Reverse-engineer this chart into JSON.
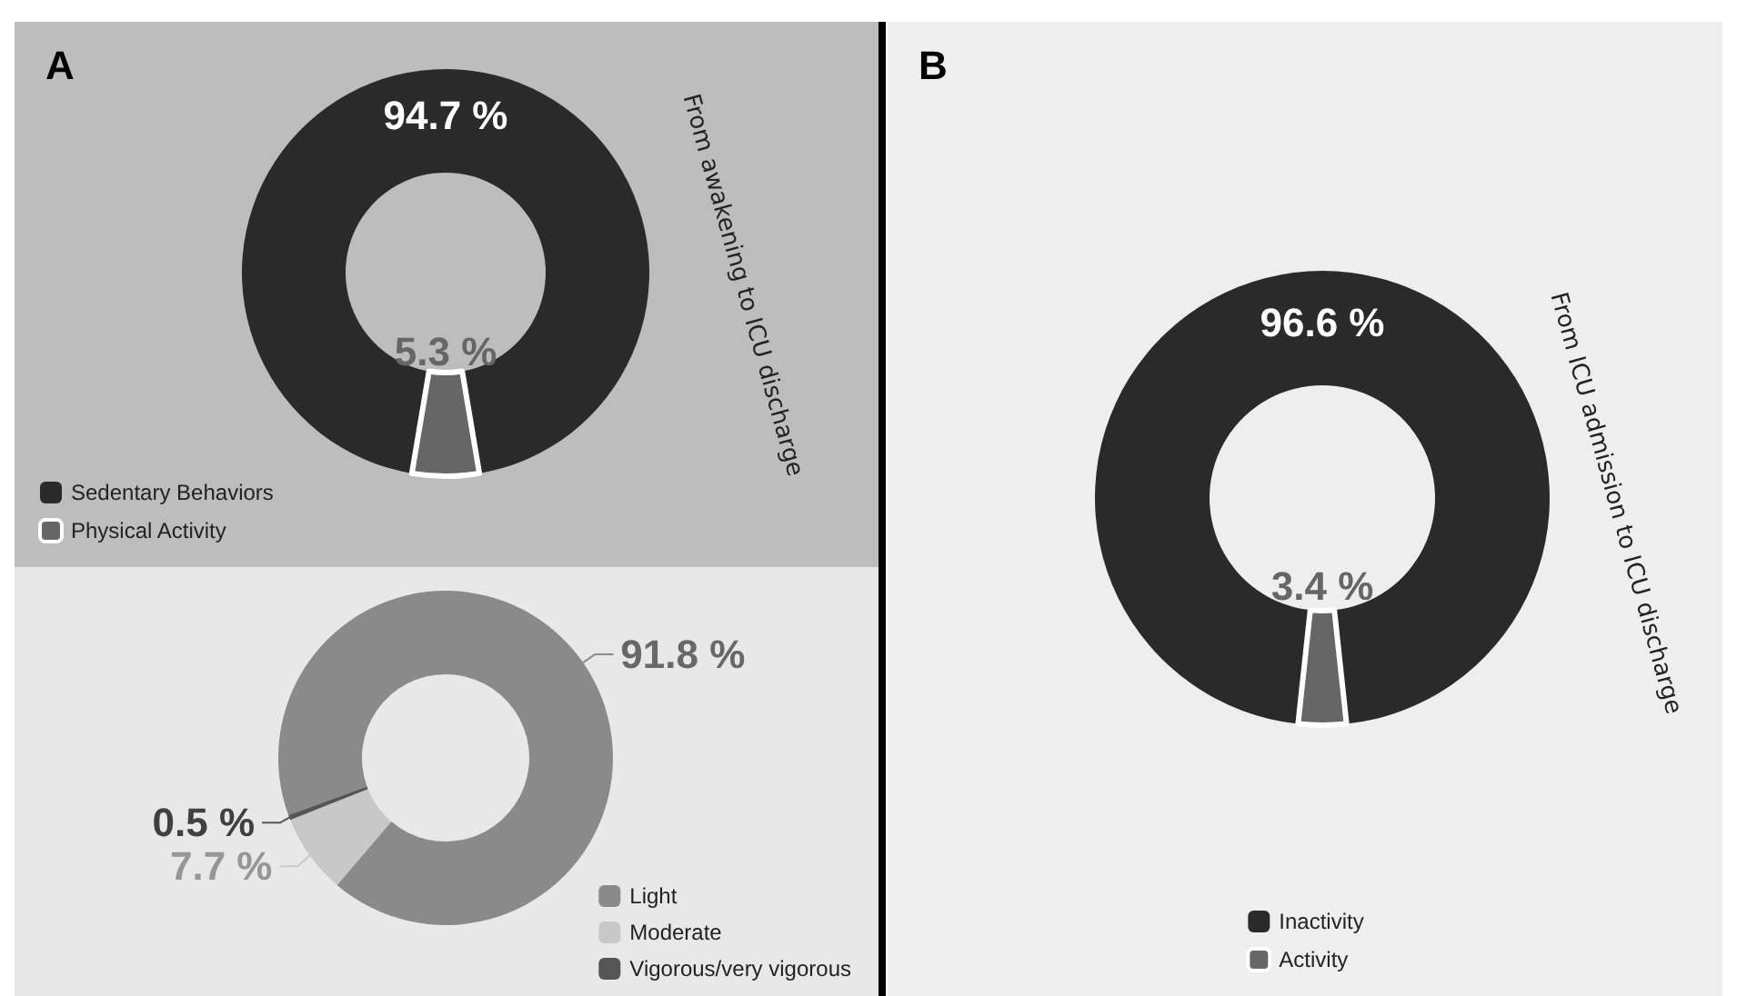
{
  "chart_data": [
    {
      "type": "donut",
      "title": "A",
      "categories": [
        "Sedentary Behaviors",
        "Physical Activity"
      ],
      "values": [
        94.7,
        5.3
      ],
      "colors": [
        "#2a2a2a",
        "#666666"
      ],
      "value_labels": [
        "94.7 %",
        "5.3 %"
      ],
      "legend": "bottom left",
      "annotations": [
        "From awakening to ICU discharge"
      ]
    },
    {
      "type": "donut",
      "categories": [
        "Light",
        "Moderate",
        "Vigorous/very vigorous"
      ],
      "values": [
        91.8,
        7.7,
        0.5
      ],
      "colors": [
        "#8a8a8a",
        "#c8c8c8",
        "#555555"
      ],
      "value_labels": [
        "91.8 %",
        "7.7 %",
        "0.5 %"
      ],
      "legend": "bottom right"
    },
    {
      "type": "donut",
      "title": "B",
      "categories": [
        "Inactivity",
        "Activity"
      ],
      "values": [
        96.6,
        3.4
      ],
      "colors": [
        "#2a2a2a",
        "#666666"
      ],
      "value_labels": [
        "96.6 %",
        "3.4 %"
      ],
      "legend": "bottom",
      "annotations": [
        "From ICU admission to ICU discharge"
      ]
    }
  ]
}
